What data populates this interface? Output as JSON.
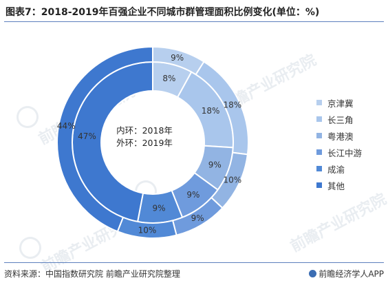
{
  "header": {
    "title": "图表7：2018-2019年百强企业不同城市群管理面积比例变化(单位：%)"
  },
  "center_label": {
    "line1": "内环：2018年",
    "line2": "外环：2019年"
  },
  "watermark_text": "前瞻产业研究院",
  "footer": {
    "source": "资料来源：中国指数研究院  前瞻产业研究院整理",
    "brand": "前瞻经济学人APP"
  },
  "colors": {
    "rule": "#5b7fbd",
    "segments": [
      "#b7cfee",
      "#a9c6ec",
      "#92b4e3",
      "#6f9bdd",
      "#5189d6",
      "#3e78cf"
    ]
  },
  "chart_data": {
    "type": "pie",
    "title": "图表7：2018-2019年百强企业不同城市群管理面积比例变化(单位：%)",
    "categories": [
      "京津冀",
      "长三角",
      "粤港澳",
      "长江中游",
      "成渝",
      "其他"
    ],
    "series": [
      {
        "name": "内环：2018年",
        "values": [
          8,
          18,
          9,
          9,
          9,
          47
        ],
        "labels": [
          "8%",
          "18%",
          "9%",
          "9%",
          "9%",
          "47%"
        ]
      },
      {
        "name": "外环：2019年",
        "values": [
          9,
          18,
          10,
          9,
          10,
          44
        ],
        "labels": [
          "9%",
          "18%",
          "10%",
          "9%",
          "10%",
          "44%"
        ]
      }
    ],
    "legend_position": "right"
  }
}
